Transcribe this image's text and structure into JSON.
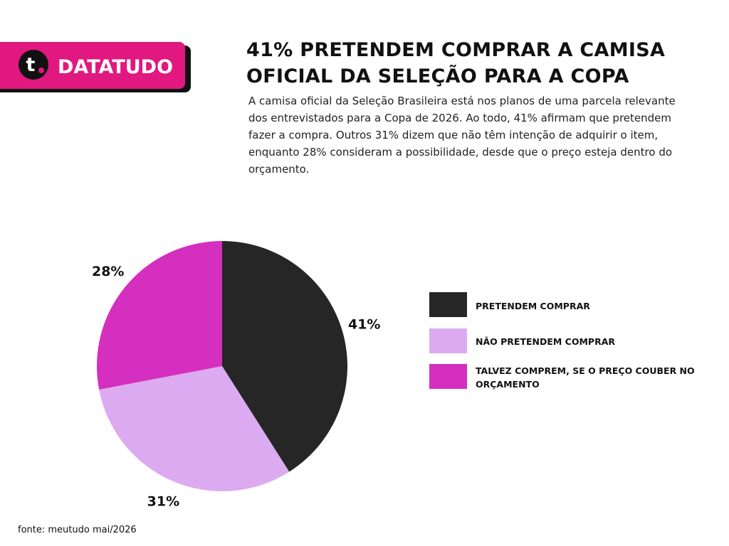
{
  "header": {
    "logo": "t",
    "brand": "DATATUDO"
  },
  "chart_data": {
    "type": "pie",
    "title": "41% PRETENDEM COMPRAR A CAMISA OFICIAL DA SELEÇÃO PARA A COPA",
    "subtitle": "A camisa oficial da Seleção Brasileira está nos planos de uma parcela relevante dos entrevistados para a Copa de 2026. Ao todo, 41% afirmam que pretendem fazer a compra. Outros 31% dizem que não têm intenção de adquirir o item, enquanto 28% consideram a possibilidade, desde que o preço esteja dentro do orçamento.",
    "categories": [
      "PRETENDEM COMPRAR",
      "NÃO PRETENDEM COMPRAR",
      "TALVEZ COMPREM, SE O PREÇO COUBER NO ORÇAMENTO"
    ],
    "values": [
      41,
      31,
      28
    ],
    "value_labels": [
      "41%",
      "31%",
      "28%"
    ],
    "colors": [
      "#262626",
      "#dcaaf0",
      "#d42fbf"
    ],
    "source": "fonte: meutudo mai/2026"
  }
}
